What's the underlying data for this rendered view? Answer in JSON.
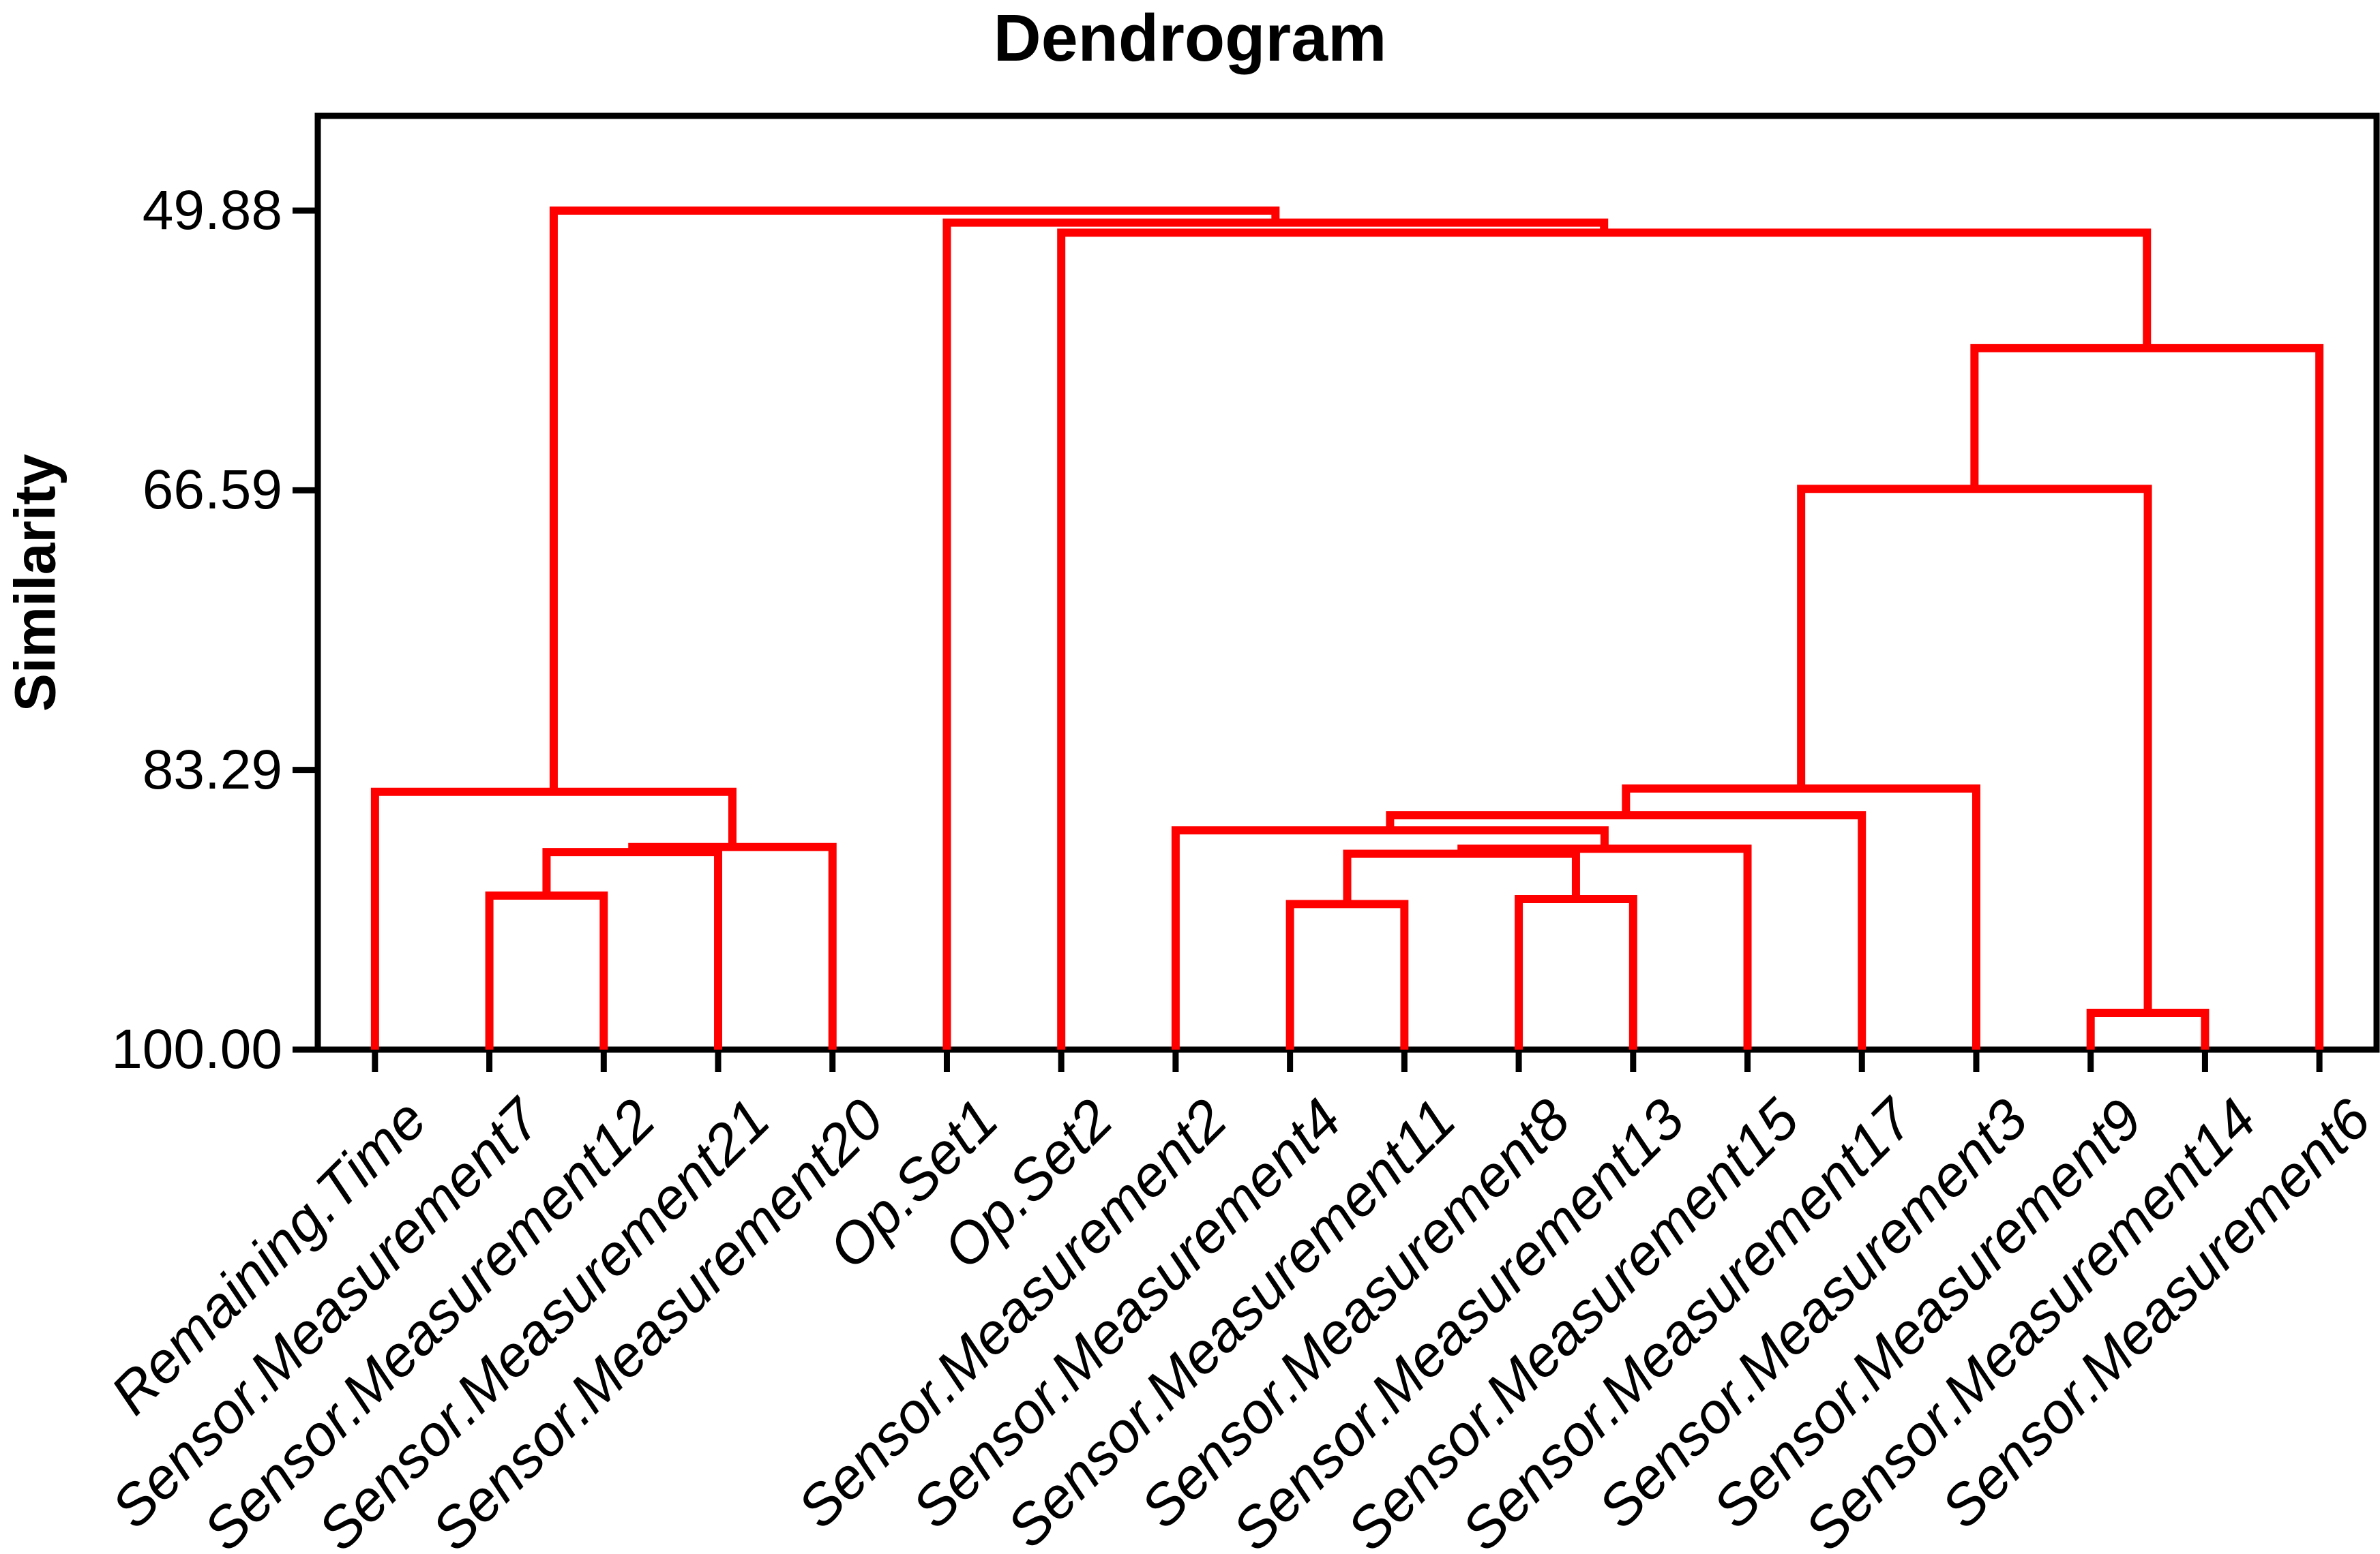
{
  "figure": {
    "title": "Dendrogram",
    "background_color": "#FFFFFF"
  },
  "chart_data": {
    "type": "dendrogram",
    "title": "Dendrogram",
    "ylabel": "Similarity",
    "yticks": [
      49.88,
      66.59,
      83.29,
      100.0
    ],
    "ytick_labels": [
      "49.88",
      "66.59",
      "83.29",
      "100.00"
    ],
    "yaxis": {
      "top_value": 49.88,
      "bottom_value": 100.0,
      "inverted": true,
      "note": "similarity 100 at leaf baseline, 49.88 at final merge"
    },
    "grid": false,
    "legend": false,
    "leaves": [
      "Remaining.Time",
      "Sensor.Measurement7",
      "Sensor.Measurement12",
      "Sensor.Measurement21",
      "Sensor.Measurement20",
      "Op.Set1",
      "Op.Set2",
      "Sensor.Measurement2",
      "Sensor.Measurement4",
      "Sensor.Measurement11",
      "Sensor.Measurement8",
      "Sensor.Measurement13",
      "Sensor.Measurement15",
      "Sensor.Measurement17",
      "Sensor.Measurement3",
      "Sensor.Measurement9",
      "Sensor.Measurement14",
      "Sensor.Measurement6"
    ],
    "merges": [
      {
        "id": "M1",
        "left": "L15",
        "right": "L16",
        "similarity": 97.8
      },
      {
        "id": "M2",
        "left": "L8",
        "right": "L9",
        "similarity": 91.3
      },
      {
        "id": "M3",
        "left": "L10",
        "right": "L11",
        "similarity": 91.0
      },
      {
        "id": "M4",
        "left": "L1",
        "right": "L2",
        "similarity": 90.8
      },
      {
        "id": "M5",
        "left": "M4",
        "right": "L3",
        "similarity": 88.2
      },
      {
        "id": "M6",
        "left": "M5",
        "right": "L4",
        "similarity": 87.9
      },
      {
        "id": "M7",
        "left": "M2",
        "right": "M3",
        "similarity": 88.3
      },
      {
        "id": "M8",
        "left": "M7",
        "right": "L12",
        "similarity": 88.0
      },
      {
        "id": "M9",
        "left": "L7",
        "right": "M8",
        "similarity": 86.9
      },
      {
        "id": "M10",
        "left": "M9",
        "right": "L13",
        "similarity": 86.0
      },
      {
        "id": "M11",
        "left": "M10",
        "right": "L14",
        "similarity": 84.4
      },
      {
        "id": "M12",
        "left": "L0",
        "right": "M6",
        "similarity": 84.6
      },
      {
        "id": "M13",
        "left": "M11",
        "right": "M1",
        "similarity": 66.5
      },
      {
        "id": "M14",
        "left": "M13",
        "right": "L17",
        "similarity": 58.1
      },
      {
        "id": "M15",
        "left": "L6",
        "right": "M14",
        "similarity": 51.2
      },
      {
        "id": "M16",
        "left": "L5",
        "right": "M15",
        "similarity": 50.6
      },
      {
        "id": "M17",
        "left": "M12",
        "right": "M16",
        "similarity": 49.88
      }
    ],
    "colors": {
      "link_line": "#FF0000",
      "axis_frame": "#000000",
      "text": "#000000",
      "background": "#FFFFFF"
    }
  }
}
